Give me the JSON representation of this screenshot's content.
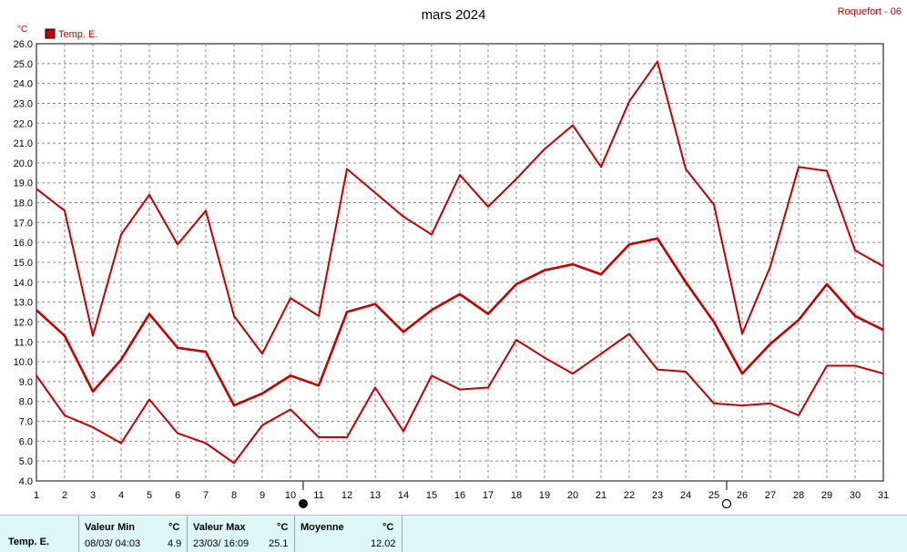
{
  "header": {
    "title": "mars 2024",
    "station": "Roquefort - 06",
    "unit": "°C",
    "legend_label": "Temp. E."
  },
  "colors": {
    "series": "#c00000",
    "grid": "#888888",
    "footer_bg": "#ddf6f6"
  },
  "chart_data": {
    "type": "line",
    "title": "mars 2024",
    "ylabel": "°C",
    "xlabel": "",
    "x": [
      1,
      2,
      3,
      4,
      5,
      6,
      7,
      8,
      9,
      10,
      11,
      12,
      13,
      14,
      15,
      16,
      17,
      18,
      19,
      20,
      21,
      22,
      23,
      24,
      25,
      26,
      27,
      28,
      29,
      30,
      31
    ],
    "xlim": [
      1,
      31
    ],
    "ylim": [
      4.0,
      26.0
    ],
    "ytick_step": 1.0,
    "grid": true,
    "legend": "top-left",
    "series": [
      {
        "name": "Temp. E.",
        "role": "max",
        "values": [
          18.7,
          17.6,
          11.3,
          16.4,
          18.4,
          15.9,
          17.6,
          12.3,
          10.4,
          13.2,
          12.3,
          19.7,
          18.5,
          17.3,
          16.4,
          19.4,
          17.8,
          19.2,
          20.7,
          21.9,
          19.8,
          23.1,
          25.1,
          19.7,
          17.9,
          11.4,
          14.8,
          19.8,
          19.6,
          15.6,
          14.8
        ]
      },
      {
        "name": "",
        "role": "mean",
        "values": [
          12.6,
          11.3,
          8.5,
          10.1,
          12.4,
          10.7,
          10.5,
          7.8,
          8.4,
          9.3,
          8.8,
          12.5,
          12.9,
          11.5,
          12.6,
          13.4,
          12.4,
          13.9,
          14.6,
          14.9,
          14.4,
          15.9,
          16.2,
          14.0,
          12.0,
          9.4,
          10.9,
          12.1,
          13.9,
          12.3,
          11.6
        ]
      },
      {
        "name": "",
        "role": "min",
        "values": [
          9.3,
          7.3,
          6.7,
          5.9,
          8.1,
          6.4,
          5.9,
          4.9,
          6.8,
          7.6,
          6.2,
          6.2,
          8.7,
          6.5,
          9.3,
          8.6,
          8.7,
          11.1,
          10.2,
          9.4,
          10.4,
          11.4,
          9.6,
          9.5,
          7.9,
          7.8,
          7.9,
          7.3,
          9.8,
          9.8,
          9.4
        ]
      }
    ],
    "moon_phases": [
      {
        "day": 10,
        "phase": "full",
        "symbol": "●"
      },
      {
        "day": 25,
        "phase": "new",
        "symbol": "○"
      }
    ]
  },
  "summary": {
    "series_label": "Temp. E.",
    "min": {
      "label": "Valeur Min",
      "unit": "°C",
      "datetime": "08/03/  04:03",
      "value": "4.9"
    },
    "max": {
      "label": "Valeur Max",
      "unit": "°C",
      "datetime": "23/03/  16:09",
      "value": "25.1"
    },
    "mean": {
      "label": "Moyenne",
      "unit": "°C",
      "value": "12.02"
    }
  }
}
